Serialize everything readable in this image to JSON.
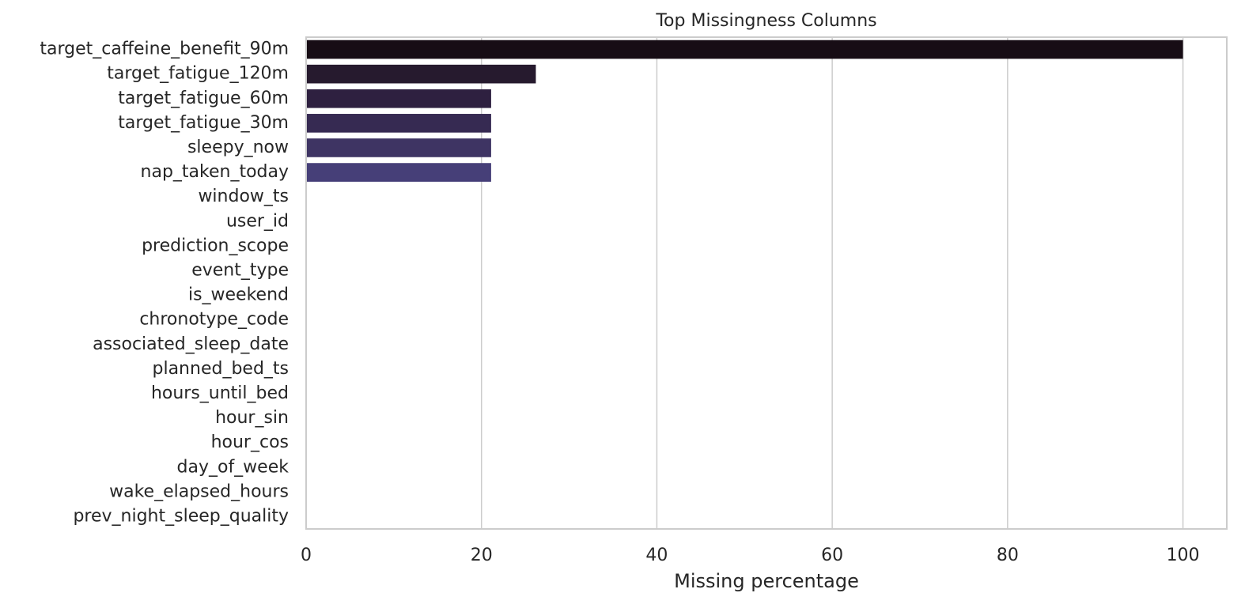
{
  "chart_data": {
    "type": "barh",
    "title": "Top Missingness Columns",
    "xlabel": "Missing percentage",
    "categories": [
      "target_caffeine_benefit_90m",
      "target_fatigue_120m",
      "target_fatigue_60m",
      "target_fatigue_30m",
      "sleepy_now",
      "nap_taken_today",
      "window_ts",
      "user_id",
      "prediction_scope",
      "event_type",
      "is_weekend",
      "chronotype_code",
      "associated_sleep_date",
      "planned_bed_ts",
      "hours_until_bed",
      "hour_sin",
      "hour_cos",
      "day_of_week",
      "wake_elapsed_hours",
      "prev_night_sleep_quality"
    ],
    "values": [
      100,
      26.2,
      21.1,
      21.1,
      21.1,
      21.1,
      0,
      0,
      0,
      0,
      0,
      0,
      0,
      0,
      0,
      0,
      0,
      0,
      0,
      0
    ],
    "colors": [
      "#170d15",
      "#261a2e",
      "#2e2040",
      "#362a52",
      "#3e3463",
      "#463f78",
      "#414c8a",
      "#3c5a93",
      "#38689a",
      "#3576a0",
      "#3484a5",
      "#3592a9",
      "#38a0ad",
      "#3eaeb0",
      "#4abbb2",
      "#5bc7b2",
      "#75d1b2",
      "#91dab6",
      "#addfbe",
      "#c8e7cc"
    ],
    "xlim": [
      0,
      105
    ],
    "xticks": [
      0,
      20,
      40,
      60,
      80,
      100
    ],
    "grid": true
  }
}
